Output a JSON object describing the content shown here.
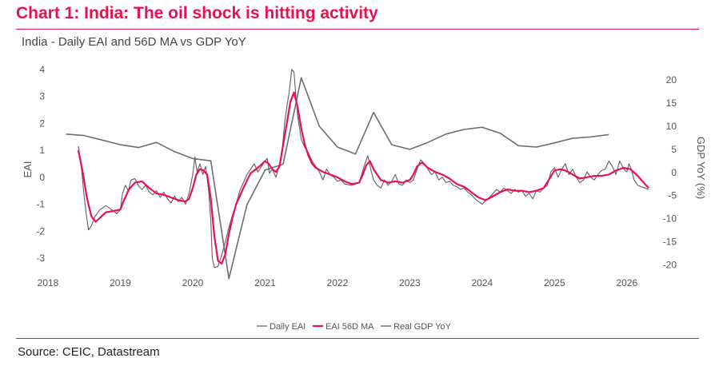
{
  "header": {
    "title": "Chart 1: India: The oil shock is hitting activity",
    "subtitle": "India - Daily EAI and 56D MA vs GDP YoY",
    "source": "Source: CEIC, Datastream"
  },
  "colors": {
    "title": "#e8114f",
    "daily": "#6b5a60",
    "ma": "#e8114f",
    "gdp": "#6e6e6e",
    "rule": "#e8114f"
  },
  "chart_data": {
    "type": "line",
    "xlabel": "",
    "ylabel": "EAI",
    "y2label": "GDP YoY (%)",
    "xlim": [
      2018,
      2026.4
    ],
    "ylim": [
      -3.5,
      4.2
    ],
    "y2lim": [
      -21.5,
      23.5
    ],
    "xticks": [
      2018,
      2019,
      2020,
      2021,
      2022,
      2023,
      2024,
      2025,
      2026
    ],
    "yticks": [
      -3,
      -2,
      -1,
      0,
      1,
      2,
      3,
      4
    ],
    "y2ticks": [
      -20,
      -15,
      -10,
      -5,
      0,
      5,
      10,
      15,
      20
    ],
    "legend_position": "bottom",
    "series": [
      {
        "name": "Daily EAI",
        "axis": "left",
        "values": [
          [
            2018.42,
            1.15
          ],
          [
            2018.46,
            0.4
          ],
          [
            2018.5,
            -0.7
          ],
          [
            2018.53,
            -1.4
          ],
          [
            2018.56,
            -1.95
          ],
          [
            2018.6,
            -1.8
          ],
          [
            2018.65,
            -1.45
          ],
          [
            2018.72,
            -1.2
          ],
          [
            2018.8,
            -1.05
          ],
          [
            2018.88,
            -1.2
          ],
          [
            2018.95,
            -1.35
          ],
          [
            2019.0,
            -1.2
          ],
          [
            2019.03,
            -0.6
          ],
          [
            2019.07,
            -0.3
          ],
          [
            2019.11,
            -0.5
          ],
          [
            2019.15,
            -0.1
          ],
          [
            2019.2,
            -0.05
          ],
          [
            2019.26,
            -0.35
          ],
          [
            2019.3,
            -0.45
          ],
          [
            2019.35,
            -0.3
          ],
          [
            2019.4,
            -0.55
          ],
          [
            2019.45,
            -0.65
          ],
          [
            2019.5,
            -0.5
          ],
          [
            2019.55,
            -0.75
          ],
          [
            2019.6,
            -0.55
          ],
          [
            2019.65,
            -0.8
          ],
          [
            2019.7,
            -0.95
          ],
          [
            2019.75,
            -0.7
          ],
          [
            2019.8,
            -0.9
          ],
          [
            2019.85,
            -0.75
          ],
          [
            2019.9,
            -1.0
          ],
          [
            2019.95,
            -0.6
          ],
          [
            2020.0,
            0.1
          ],
          [
            2020.03,
            0.75
          ],
          [
            2020.06,
            0.2
          ],
          [
            2020.1,
            0.5
          ],
          [
            2020.14,
            0.1
          ],
          [
            2020.18,
            0.4
          ],
          [
            2020.22,
            -0.5
          ],
          [
            2020.25,
            -1.6
          ],
          [
            2020.27,
            -3.0
          ],
          [
            2020.3,
            -3.35
          ],
          [
            2020.35,
            -3.3
          ],
          [
            2020.4,
            -2.9
          ],
          [
            2020.45,
            -2.4
          ],
          [
            2020.5,
            -1.85
          ],
          [
            2020.55,
            -1.4
          ],
          [
            2020.6,
            -1.0
          ],
          [
            2020.65,
            -0.5
          ],
          [
            2020.7,
            -0.2
          ],
          [
            2020.75,
            0.1
          ],
          [
            2020.8,
            0.3
          ],
          [
            2020.85,
            0.5
          ],
          [
            2020.9,
            0.2
          ],
          [
            2020.95,
            0.4
          ],
          [
            2021.0,
            0.6
          ],
          [
            2021.03,
            0.7
          ],
          [
            2021.06,
            0.15
          ],
          [
            2021.1,
            0.3
          ],
          [
            2021.15,
            0.0
          ],
          [
            2021.2,
            0.5
          ],
          [
            2021.24,
            1.1
          ],
          [
            2021.27,
            2.0
          ],
          [
            2021.3,
            2.6
          ],
          [
            2021.33,
            3.1
          ],
          [
            2021.37,
            4.0
          ],
          [
            2021.4,
            3.9
          ],
          [
            2021.42,
            3.2
          ],
          [
            2021.45,
            2.3
          ],
          [
            2021.5,
            1.4
          ],
          [
            2021.55,
            1.1
          ],
          [
            2021.6,
            0.9
          ],
          [
            2021.65,
            0.6
          ],
          [
            2021.7,
            0.4
          ],
          [
            2021.75,
            0.2
          ],
          [
            2021.8,
            -0.1
          ],
          [
            2021.85,
            0.3
          ],
          [
            2021.9,
            0.1
          ],
          [
            2021.95,
            0.0
          ],
          [
            2022.0,
            -0.15
          ],
          [
            2022.05,
            -0.1
          ],
          [
            2022.1,
            -0.25
          ],
          [
            2022.2,
            -0.3
          ],
          [
            2022.3,
            -0.2
          ],
          [
            2022.38,
            0.5
          ],
          [
            2022.42,
            0.8
          ],
          [
            2022.46,
            0.3
          ],
          [
            2022.5,
            -0.1
          ],
          [
            2022.55,
            -0.3
          ],
          [
            2022.6,
            -0.4
          ],
          [
            2022.65,
            -0.1
          ],
          [
            2022.7,
            -0.3
          ],
          [
            2022.75,
            -0.15
          ],
          [
            2022.8,
            0.1
          ],
          [
            2022.85,
            -0.25
          ],
          [
            2022.9,
            -0.3
          ],
          [
            2022.95,
            -0.1
          ],
          [
            2023.0,
            -0.2
          ],
          [
            2023.05,
            -0.1
          ],
          [
            2023.1,
            0.3
          ],
          [
            2023.15,
            0.65
          ],
          [
            2023.2,
            0.5
          ],
          [
            2023.25,
            0.3
          ],
          [
            2023.3,
            0.1
          ],
          [
            2023.35,
            0.2
          ],
          [
            2023.4,
            -0.1
          ],
          [
            2023.45,
            0.0
          ],
          [
            2023.5,
            -0.2
          ],
          [
            2023.55,
            -0.15
          ],
          [
            2023.6,
            -0.3
          ],
          [
            2023.65,
            -0.35
          ],
          [
            2023.7,
            -0.45
          ],
          [
            2023.75,
            -0.4
          ],
          [
            2023.8,
            -0.55
          ],
          [
            2023.85,
            -0.65
          ],
          [
            2023.9,
            -0.8
          ],
          [
            2023.95,
            -0.9
          ],
          [
            2024.0,
            -1.0
          ],
          [
            2024.05,
            -0.85
          ],
          [
            2024.1,
            -0.75
          ],
          [
            2024.15,
            -0.6
          ],
          [
            2024.2,
            -0.45
          ],
          [
            2024.25,
            -0.55
          ],
          [
            2024.3,
            -0.4
          ],
          [
            2024.35,
            -0.5
          ],
          [
            2024.4,
            -0.6
          ],
          [
            2024.45,
            -0.45
          ],
          [
            2024.5,
            -0.55
          ],
          [
            2024.55,
            -0.5
          ],
          [
            2024.6,
            -0.7
          ],
          [
            2024.65,
            -0.6
          ],
          [
            2024.7,
            -0.8
          ],
          [
            2024.75,
            -0.5
          ],
          [
            2024.8,
            -0.55
          ],
          [
            2024.85,
            -0.4
          ],
          [
            2024.9,
            -0.3
          ],
          [
            2024.95,
            0.2
          ],
          [
            2025.0,
            0.35
          ],
          [
            2025.05,
            0.0
          ],
          [
            2025.1,
            0.3
          ],
          [
            2025.15,
            0.5
          ],
          [
            2025.2,
            0.1
          ],
          [
            2025.25,
            0.3
          ],
          [
            2025.3,
            0.0
          ],
          [
            2025.35,
            -0.2
          ],
          [
            2025.4,
            -0.1
          ],
          [
            2025.45,
            0.2
          ],
          [
            2025.5,
            0.0
          ],
          [
            2025.55,
            -0.1
          ],
          [
            2025.6,
            0.1
          ],
          [
            2025.65,
            0.25
          ],
          [
            2025.7,
            0.3
          ],
          [
            2025.75,
            0.6
          ],
          [
            2025.8,
            0.4
          ],
          [
            2025.85,
            0.1
          ],
          [
            2025.9,
            0.6
          ],
          [
            2025.93,
            0.45
          ],
          [
            2025.96,
            0.3
          ],
          [
            2026.0,
            0.2
          ],
          [
            2026.03,
            0.5
          ],
          [
            2026.06,
            0.3
          ],
          [
            2026.1,
            -0.1
          ],
          [
            2026.15,
            -0.3
          ],
          [
            2026.2,
            -0.35
          ],
          [
            2026.25,
            -0.4
          ],
          [
            2026.3,
            -0.45
          ]
        ]
      },
      {
        "name": "EAI 56D MA",
        "axis": "left",
        "values": [
          [
            2018.42,
            1.0
          ],
          [
            2018.48,
            0.2
          ],
          [
            2018.54,
            -0.8
          ],
          [
            2018.6,
            -1.45
          ],
          [
            2018.66,
            -1.65
          ],
          [
            2018.72,
            -1.5
          ],
          [
            2018.8,
            -1.3
          ],
          [
            2018.9,
            -1.25
          ],
          [
            2019.0,
            -1.2
          ],
          [
            2019.05,
            -0.85
          ],
          [
            2019.12,
            -0.45
          ],
          [
            2019.2,
            -0.2
          ],
          [
            2019.3,
            -0.15
          ],
          [
            2019.4,
            -0.4
          ],
          [
            2019.5,
            -0.6
          ],
          [
            2019.6,
            -0.65
          ],
          [
            2019.7,
            -0.75
          ],
          [
            2019.8,
            -0.85
          ],
          [
            2019.9,
            -0.9
          ],
          [
            2019.95,
            -0.8
          ],
          [
            2020.0,
            -0.4
          ],
          [
            2020.05,
            0.1
          ],
          [
            2020.1,
            0.3
          ],
          [
            2020.15,
            0.25
          ],
          [
            2020.2,
            0.1
          ],
          [
            2020.25,
            -0.8
          ],
          [
            2020.3,
            -2.2
          ],
          [
            2020.35,
            -3.1
          ],
          [
            2020.4,
            -3.2
          ],
          [
            2020.45,
            -2.85
          ],
          [
            2020.5,
            -2.1
          ],
          [
            2020.55,
            -1.5
          ],
          [
            2020.6,
            -1.0
          ],
          [
            2020.7,
            -0.4
          ],
          [
            2020.8,
            0.15
          ],
          [
            2020.9,
            0.35
          ],
          [
            2021.0,
            0.6
          ],
          [
            2021.05,
            0.5
          ],
          [
            2021.1,
            0.3
          ],
          [
            2021.15,
            0.2
          ],
          [
            2021.2,
            0.4
          ],
          [
            2021.25,
            1.2
          ],
          [
            2021.3,
            2.0
          ],
          [
            2021.35,
            2.8
          ],
          [
            2021.4,
            3.15
          ],
          [
            2021.45,
            2.6
          ],
          [
            2021.5,
            1.8
          ],
          [
            2021.55,
            1.2
          ],
          [
            2021.6,
            0.8
          ],
          [
            2021.65,
            0.5
          ],
          [
            2021.7,
            0.35
          ],
          [
            2021.8,
            0.2
          ],
          [
            2021.9,
            0.1
          ],
          [
            2022.0,
            0.0
          ],
          [
            2022.1,
            -0.15
          ],
          [
            2022.2,
            -0.25
          ],
          [
            2022.3,
            -0.2
          ],
          [
            2022.35,
            0.1
          ],
          [
            2022.4,
            0.45
          ],
          [
            2022.45,
            0.6
          ],
          [
            2022.5,
            0.3
          ],
          [
            2022.6,
            -0.1
          ],
          [
            2022.7,
            -0.2
          ],
          [
            2022.8,
            -0.15
          ],
          [
            2022.9,
            -0.2
          ],
          [
            2023.0,
            -0.1
          ],
          [
            2023.05,
            0.1
          ],
          [
            2023.1,
            0.4
          ],
          [
            2023.17,
            0.55
          ],
          [
            2023.25,
            0.35
          ],
          [
            2023.35,
            0.2
          ],
          [
            2023.45,
            0.1
          ],
          [
            2023.55,
            -0.05
          ],
          [
            2023.65,
            -0.25
          ],
          [
            2023.75,
            -0.35
          ],
          [
            2023.85,
            -0.55
          ],
          [
            2023.95,
            -0.75
          ],
          [
            2024.05,
            -0.85
          ],
          [
            2024.15,
            -0.7
          ],
          [
            2024.25,
            -0.55
          ],
          [
            2024.35,
            -0.45
          ],
          [
            2024.45,
            -0.5
          ],
          [
            2024.55,
            -0.5
          ],
          [
            2024.65,
            -0.55
          ],
          [
            2024.75,
            -0.5
          ],
          [
            2024.85,
            -0.4
          ],
          [
            2024.92,
            -0.1
          ],
          [
            2025.0,
            0.25
          ],
          [
            2025.08,
            0.3
          ],
          [
            2025.15,
            0.25
          ],
          [
            2025.25,
            0.1
          ],
          [
            2025.35,
            -0.05
          ],
          [
            2025.45,
            0.0
          ],
          [
            2025.55,
            0.05
          ],
          [
            2025.65,
            0.05
          ],
          [
            2025.75,
            0.1
          ],
          [
            2025.85,
            0.25
          ],
          [
            2025.95,
            0.35
          ],
          [
            2026.05,
            0.3
          ],
          [
            2026.15,
            0.05
          ],
          [
            2026.25,
            -0.25
          ],
          [
            2026.3,
            -0.4
          ]
        ]
      },
      {
        "name": "Real GDP YoY",
        "axis": "right",
        "values": [
          [
            2018.25,
            8.3
          ],
          [
            2018.5,
            8.0
          ],
          [
            2018.75,
            7.0
          ],
          [
            2019.0,
            6.0
          ],
          [
            2019.25,
            5.4
          ],
          [
            2019.5,
            6.5
          ],
          [
            2019.75,
            4.5
          ],
          [
            2020.0,
            3.0
          ],
          [
            2020.25,
            2.5
          ],
          [
            2020.5,
            -23.0
          ],
          [
            2020.75,
            -7.0
          ],
          [
            2021.0,
            0.5
          ],
          [
            2021.25,
            1.8
          ],
          [
            2021.5,
            20.5
          ],
          [
            2021.75,
            10.0
          ],
          [
            2022.0,
            5.5
          ],
          [
            2022.25,
            4.0
          ],
          [
            2022.5,
            13.0
          ],
          [
            2022.75,
            6.0
          ],
          [
            2023.0,
            5.0
          ],
          [
            2023.25,
            6.5
          ],
          [
            2023.5,
            8.3
          ],
          [
            2023.75,
            9.3
          ],
          [
            2024.0,
            9.8
          ],
          [
            2024.25,
            8.5
          ],
          [
            2024.5,
            5.8
          ],
          [
            2024.75,
            5.5
          ],
          [
            2025.0,
            6.4
          ],
          [
            2025.25,
            7.4
          ],
          [
            2025.5,
            7.7
          ],
          [
            2025.75,
            8.2
          ]
        ]
      }
    ]
  }
}
